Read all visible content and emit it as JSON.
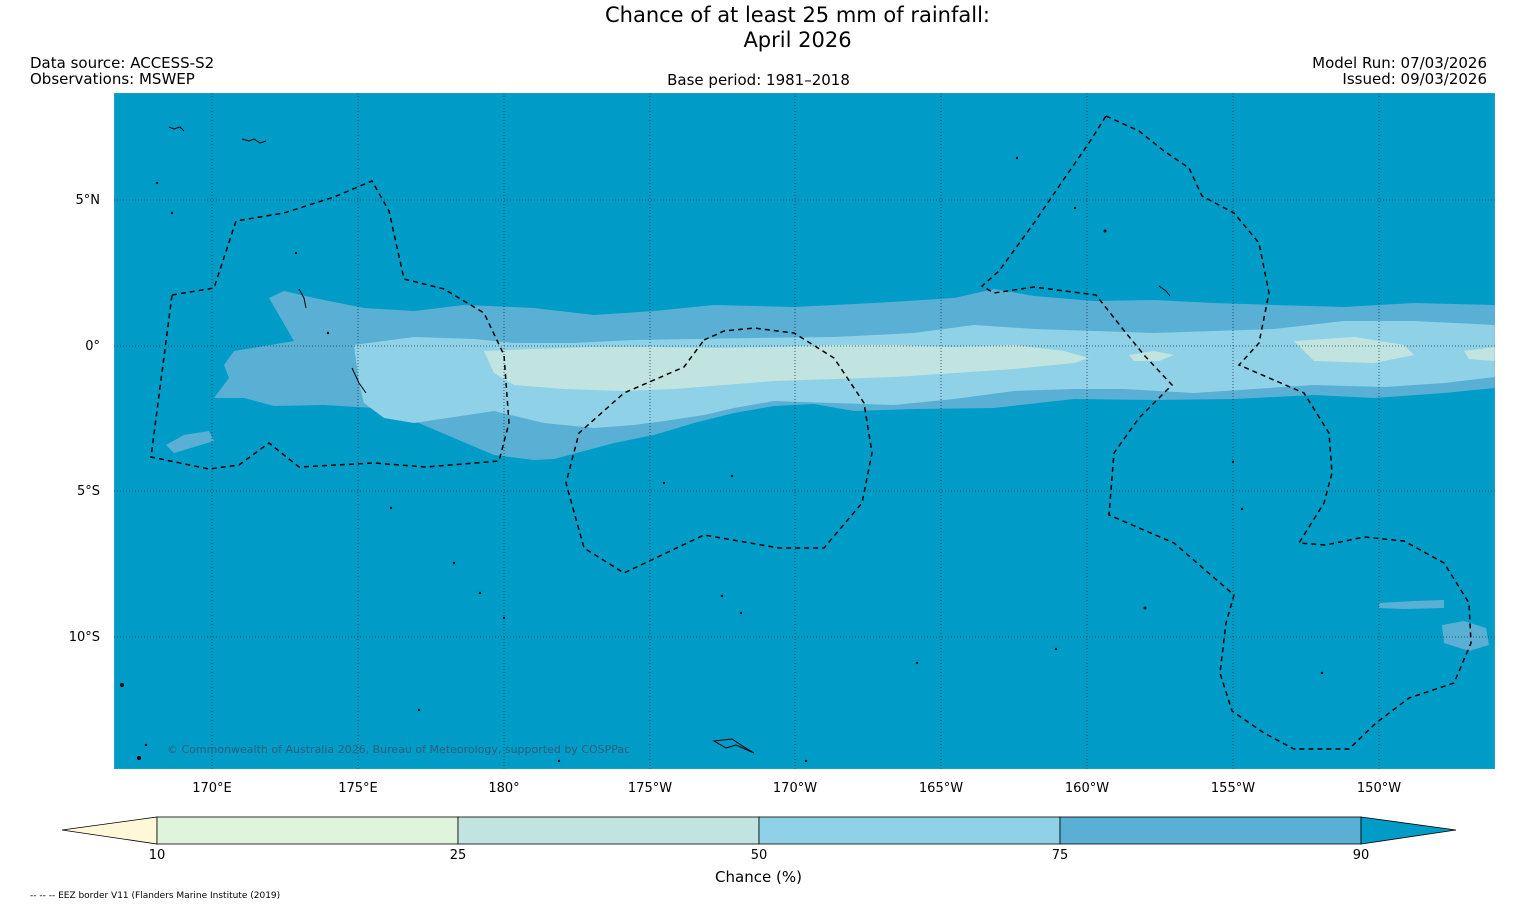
{
  "title": {
    "line1": "Chance of at least 25 mm of rainfall:",
    "line2": "April 2026"
  },
  "meta": {
    "data_source": "Data source: ACCESS-S2",
    "observations": "Observations: MSWEP",
    "model_run": "Model Run: 07/03/2026",
    "issued": "Issued: 09/03/2026",
    "base_period": "Base period: 1981–2018"
  },
  "map": {
    "lat_labels": [
      "5°N",
      "0°",
      "5°S",
      "10°S"
    ],
    "lon_labels": [
      "170°E",
      "175°E",
      "180°",
      "175°W",
      "170°W",
      "165°W",
      "160°W",
      "155°W",
      "150°W"
    ],
    "copyright": "© Commonwealth of Australia 2026, Bureau of Meteorology, supported by COSPPac"
  },
  "colorbar": {
    "label": "Chance (%)",
    "ticks": [
      "10",
      "25",
      "50",
      "75",
      "90"
    ],
    "colors": [
      "#fff8d8",
      "#e0f3db",
      "#c2e4e1",
      "#8fd2e8",
      "#5ab0d4",
      "#009cc8"
    ]
  },
  "legend_note": "-- -- -- EEZ border V11 (Flanders Marine Institute (2019)"
}
